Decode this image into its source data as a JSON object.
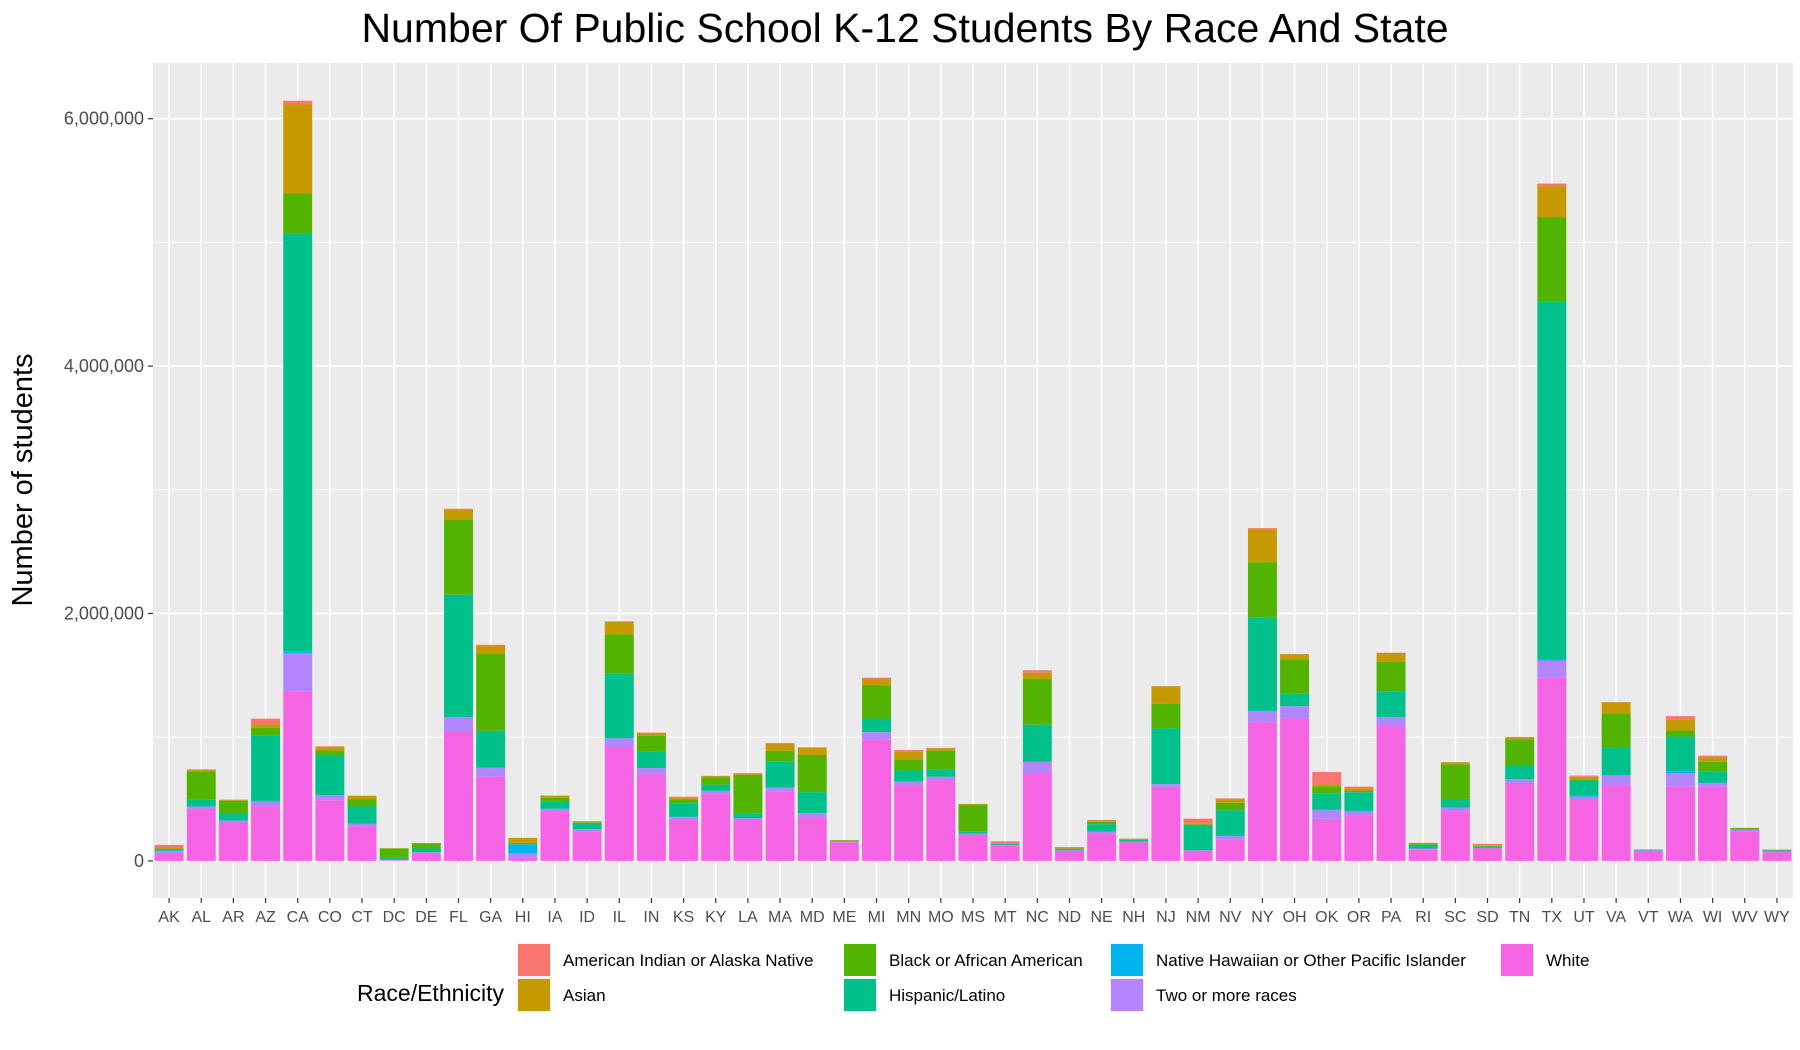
{
  "chart_data": {
    "type": "bar",
    "stacked": true,
    "title": "Number Of Public School K-12 Students By Race And State",
    "xlabel": "",
    "ylabel": "Number of students",
    "ylim": [
      -300000,
      6450000
    ],
    "y_ticks": [
      0,
      2000000,
      4000000,
      6000000
    ],
    "y_tick_labels": [
      "0",
      "2,000,000",
      "4,000,000",
      "6,000,000"
    ],
    "grid": true,
    "legend": {
      "title": "Race/Ethnicity",
      "position": "bottom"
    },
    "categories": [
      "AK",
      "AL",
      "AR",
      "AZ",
      "CA",
      "CO",
      "CT",
      "DC",
      "DE",
      "FL",
      "GA",
      "HI",
      "IA",
      "ID",
      "IL",
      "IN",
      "KS",
      "KY",
      "LA",
      "MA",
      "MD",
      "ME",
      "MI",
      "MN",
      "MO",
      "MS",
      "MT",
      "NC",
      "ND",
      "NE",
      "NH",
      "NJ",
      "NM",
      "NV",
      "NY",
      "OH",
      "OK",
      "OR",
      "PA",
      "RI",
      "SC",
      "SD",
      "TN",
      "TX",
      "UT",
      "VA",
      "VT",
      "WA",
      "WI",
      "WV",
      "WY"
    ],
    "series": [
      {
        "name": "White",
        "color": "#F564E3",
        "values": [
          65000,
          420000,
          310000,
          440000,
          1370000,
          490000,
          280000,
          5000,
          60000,
          1050000,
          680000,
          30000,
          400000,
          240000,
          920000,
          700000,
          330000,
          540000,
          330000,
          560000,
          350000,
          150000,
          980000,
          610000,
          650000,
          210000,
          120000,
          710000,
          80000,
          220000,
          150000,
          600000,
          80000,
          170000,
          1120000,
          1150000,
          340000,
          370000,
          1090000,
          90000,
          400000,
          100000,
          630000,
          1480000,
          500000,
          610000,
          80000,
          600000,
          600000,
          240000,
          70000
        ]
      },
      {
        "name": "Two or more races",
        "color": "#B385FF",
        "values": [
          15000,
          20000,
          15000,
          40000,
          310000,
          40000,
          20000,
          5000,
          10000,
          110000,
          70000,
          30000,
          20000,
          15000,
          70000,
          50000,
          25000,
          25000,
          15000,
          30000,
          35000,
          5000,
          60000,
          30000,
          30000,
          10000,
          10000,
          90000,
          5000,
          15000,
          5000,
          20000,
          5000,
          30000,
          90000,
          100000,
          70000,
          30000,
          70000,
          10000,
          30000,
          5000,
          30000,
          140000,
          20000,
          80000,
          5000,
          110000,
          30000,
          10000,
          5000
        ]
      },
      {
        "name": "Native Hawaiian or Other Pacific Islander",
        "color": "#00B4EF",
        "values": [
          3000,
          0,
          2000,
          5000,
          15000,
          2000,
          0,
          0,
          0,
          2000,
          2000,
          70000,
          1000,
          2000,
          2000,
          1000,
          1000,
          1000,
          0,
          1000,
          1000,
          0,
          1000,
          1000,
          1000,
          0,
          0,
          1000,
          0,
          1000,
          0,
          1000,
          1000,
          10000,
          5000,
          1000,
          3000,
          5000,
          1000,
          0,
          1000,
          0,
          1000,
          5000,
          10000,
          2000,
          0,
          15000,
          1000,
          0,
          0
        ]
      },
      {
        "name": "Hispanic/Latino",
        "color": "#00C08B",
        "values": [
          10000,
          55000,
          60000,
          530000,
          3380000,
          320000,
          140000,
          15000,
          30000,
          990000,
          300000,
          10000,
          60000,
          50000,
          520000,
          130000,
          110000,
          50000,
          40000,
          210000,
          170000,
          5000,
          110000,
          90000,
          60000,
          15000,
          10000,
          300000,
          10000,
          60000,
          15000,
          450000,
          200000,
          200000,
          750000,
          100000,
          130000,
          150000,
          210000,
          30000,
          70000,
          10000,
          110000,
          2900000,
          120000,
          220000,
          5000,
          280000,
          90000,
          5000,
          10000
        ]
      },
      {
        "name": "Black or African American",
        "color": "#53B400",
        "values": [
          3000,
          230000,
          100000,
          60000,
          320000,
          40000,
          60000,
          75000,
          40000,
          610000,
          620000,
          5000,
          30000,
          5000,
          320000,
          130000,
          30000,
          60000,
          310000,
          90000,
          300000,
          5000,
          270000,
          90000,
          150000,
          220000,
          2000,
          370000,
          5000,
          20000,
          5000,
          200000,
          10000,
          60000,
          450000,
          280000,
          60000,
          10000,
          240000,
          10000,
          280000,
          5000,
          210000,
          680000,
          10000,
          280000,
          2000,
          50000,
          80000,
          10000,
          1000
        ]
      },
      {
        "name": "Asian",
        "color": "#C49A00",
        "values": [
          8000,
          10000,
          5000,
          30000,
          720000,
          30000,
          25000,
          2000,
          5000,
          80000,
          70000,
          40000,
          15000,
          5000,
          100000,
          25000,
          15000,
          10000,
          10000,
          60000,
          60000,
          2000,
          50000,
          60000,
          20000,
          5000,
          1000,
          50000,
          2000,
          10000,
          5000,
          140000,
          5000,
          30000,
          260000,
          40000,
          15000,
          20000,
          70000,
          5000,
          15000,
          2000,
          20000,
          250000,
          20000,
          90000,
          1000,
          90000,
          40000,
          2000,
          1000
        ]
      },
      {
        "name": "American Indian or Alaska Native",
        "color": "#F8766D",
        "values": [
          25000,
          5000,
          3000,
          45000,
          30000,
          5000,
          2000,
          0,
          0,
          5000,
          5000,
          1000,
          3000,
          5000,
          5000,
          2000,
          8000,
          1000,
          5000,
          2000,
          2000,
          1000,
          10000,
          15000,
          3000,
          1000,
          15000,
          20000,
          10000,
          5000,
          1000,
          2000,
          40000,
          5000,
          15000,
          2000,
          100000,
          15000,
          2000,
          1000,
          3000,
          15000,
          1000,
          20000,
          10000,
          2000,
          0,
          25000,
          10000,
          0,
          5000
        ]
      }
    ]
  }
}
